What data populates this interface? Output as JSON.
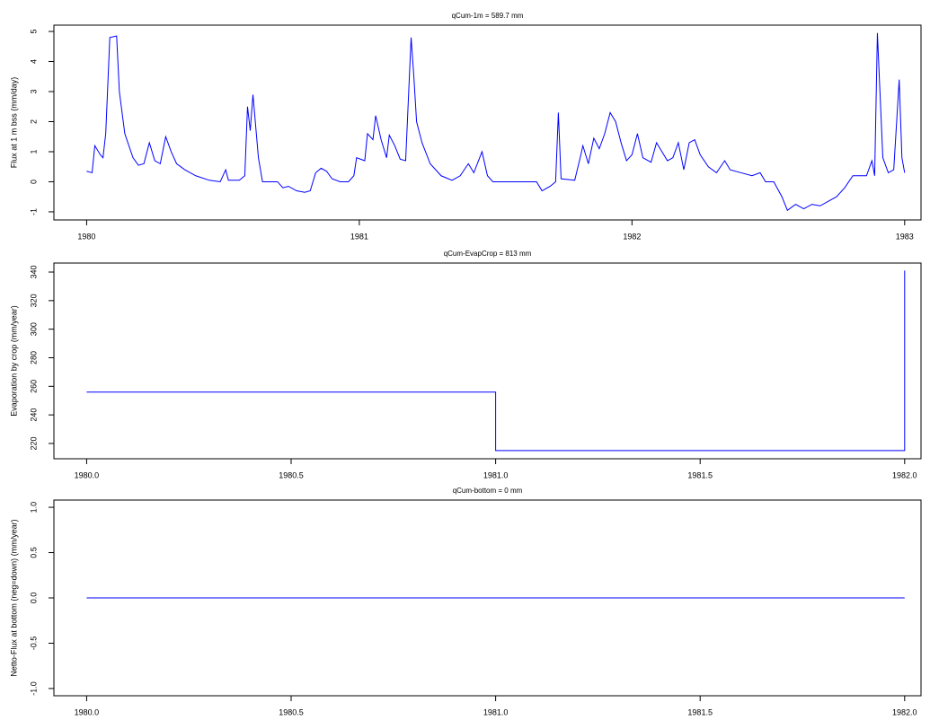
{
  "chart_data": [
    {
      "type": "line",
      "title": "qCum-1m  =  589.7  mm",
      "y_label": "Flux at 1 m bss (mm/day)",
      "color": "#0000ff",
      "x": [
        1980.0,
        1980.02,
        1980.03,
        1980.05,
        1980.06,
        1980.07,
        1980.085,
        1980.11,
        1980.12,
        1980.14,
        1980.17,
        1980.19,
        1980.21,
        1980.23,
        1980.25,
        1980.27,
        1980.29,
        1980.31,
        1980.33,
        1980.36,
        1980.4,
        1980.45,
        1980.49,
        1980.51,
        1980.52,
        1980.56,
        1980.58,
        1980.59,
        1980.6,
        1980.61,
        1980.63,
        1980.645,
        1980.7,
        1980.72,
        1980.74,
        1980.77,
        1980.8,
        1980.82,
        1980.84,
        1980.86,
        1980.88,
        1980.9,
        1980.93,
        1980.96,
        1980.98,
        1980.99,
        1981.02,
        1981.03,
        1981.05,
        1981.06,
        1981.08,
        1981.1,
        1981.11,
        1981.13,
        1981.15,
        1981.17,
        1981.19,
        1981.2,
        1981.21,
        1981.23,
        1981.26,
        1981.3,
        1981.34,
        1981.37,
        1981.4,
        1981.42,
        1981.45,
        1981.47,
        1981.49,
        1981.65,
        1981.67,
        1981.7,
        1981.72,
        1981.73,
        1981.74,
        1981.79,
        1981.81,
        1981.82,
        1981.84,
        1981.86,
        1981.88,
        1981.9,
        1981.92,
        1981.94,
        1981.96,
        1981.98,
        1982.0,
        1982.02,
        1982.04,
        1982.07,
        1982.09,
        1982.11,
        1982.13,
        1982.15,
        1982.17,
        1982.19,
        1982.21,
        1982.23,
        1982.25,
        1982.28,
        1982.31,
        1982.34,
        1982.36,
        1982.4,
        1982.44,
        1982.47,
        1982.49,
        1982.52,
        1982.55,
        1982.57,
        1982.6,
        1982.63,
        1982.66,
        1982.69,
        1982.72,
        1982.75,
        1982.78,
        1982.81,
        1982.86,
        1982.88,
        1982.89,
        1982.9,
        1982.92,
        1982.94,
        1982.96,
        1982.98,
        1982.99,
        1983.0
      ],
      "values": [
        0.35,
        0.3,
        1.2,
        0.9,
        0.8,
        1.6,
        4.8,
        4.85,
        3.0,
        1.6,
        0.8,
        0.55,
        0.6,
        1.3,
        0.7,
        0.6,
        1.5,
        1.0,
        0.6,
        0.4,
        0.2,
        0.05,
        0.0,
        0.4,
        0.05,
        0.05,
        0.2,
        2.5,
        1.7,
        2.9,
        0.8,
        0.0,
        0.0,
        -0.2,
        -0.15,
        -0.3,
        -0.35,
        -0.3,
        0.3,
        0.45,
        0.35,
        0.1,
        0.0,
        0.0,
        0.2,
        0.8,
        0.7,
        1.6,
        1.4,
        2.2,
        1.4,
        0.8,
        1.55,
        1.2,
        0.75,
        0.7,
        4.8,
        3.5,
        2.0,
        1.3,
        0.6,
        0.2,
        0.05,
        0.2,
        0.6,
        0.3,
        1.0,
        0.2,
        0.0,
        0.0,
        -0.3,
        -0.15,
        0.0,
        2.3,
        0.1,
        0.05,
        0.8,
        1.2,
        0.6,
        1.45,
        1.1,
        1.6,
        2.3,
        2.0,
        1.3,
        0.7,
        0.9,
        1.6,
        0.8,
        0.65,
        1.3,
        1.0,
        0.7,
        0.8,
        1.3,
        0.4,
        1.3,
        1.4,
        0.9,
        0.5,
        0.3,
        0.7,
        0.4,
        0.3,
        0.2,
        0.3,
        0.0,
        0.0,
        -0.5,
        -0.95,
        -0.75,
        -0.9,
        -0.75,
        -0.8,
        -0.65,
        -0.5,
        -0.2,
        0.2,
        0.2,
        0.7,
        0.2,
        4.95,
        0.8,
        0.3,
        0.4,
        3.4,
        0.8,
        0.3
      ],
      "xlim": [
        1979.88,
        1983.06
      ],
      "xticks": [
        1980,
        1981,
        1982,
        1983
      ],
      "ylim": [
        -1.27,
        5.21
      ],
      "yticks": [
        -1,
        0,
        1,
        2,
        3,
        4,
        5
      ]
    },
    {
      "type": "line",
      "title": "qCum-EvapCrop  =  813  mm",
      "y_label": "Evaporation by crop (mm/year)",
      "color": "#0000ff",
      "x": [
        1980,
        1981,
        1981,
        1982,
        1982
      ],
      "values": [
        256,
        256,
        215,
        215,
        341
      ],
      "xlim": [
        1979.92,
        1982.04
      ],
      "xticks": [
        {
          "value": 1980,
          "label": "1980.0"
        },
        {
          "value": 1980.5,
          "label": "1980.5"
        },
        {
          "value": 1981,
          "label": "1981.0"
        },
        {
          "value": 1981.5,
          "label": "1981.5"
        },
        {
          "value": 1982,
          "label": "1982.0"
        }
      ],
      "ylim": [
        209.3,
        346.3
      ],
      "yticks": [
        220,
        240,
        260,
        280,
        300,
        320,
        340
      ]
    },
    {
      "type": "line",
      "title": "qCum-bottom  =  0  mm",
      "y_label": "Netto-Flux at bottom (neg=down) (mm/year)",
      "color": "#0000ff",
      "x": [
        1980,
        1982
      ],
      "values": [
        0,
        0
      ],
      "xlim": [
        1979.92,
        1982.04
      ],
      "xticks": [
        {
          "value": 1980,
          "label": "1980.0"
        },
        {
          "value": 1980.5,
          "label": "1980.5"
        },
        {
          "value": 1981,
          "label": "1981.0"
        },
        {
          "value": 1981.5,
          "label": "1981.5"
        },
        {
          "value": 1982,
          "label": "1982.0"
        }
      ],
      "ylim": [
        -1.08,
        1.08
      ],
      "yticks": [
        {
          "value": -1,
          "label": "-1.0"
        },
        {
          "value": -0.5,
          "label": "-0.5"
        },
        {
          "value": 0,
          "label": "0.0"
        },
        {
          "value": 0.5,
          "label": "0.5"
        },
        {
          "value": 1,
          "label": "1.0"
        }
      ]
    }
  ]
}
